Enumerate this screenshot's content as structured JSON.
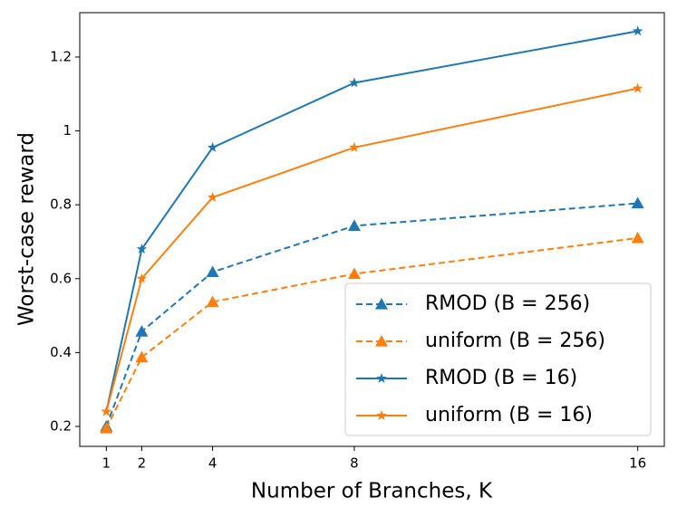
{
  "chart_data": {
    "type": "line",
    "x_label": "Number of Branches, K",
    "y_label": "Worst-case reward",
    "xlim": [
      0.25,
      16.75
    ],
    "ylim": [
      0.146,
      1.32
    ],
    "xticks": [
      1,
      2,
      4,
      8,
      16
    ],
    "yticks": [
      0.2,
      0.4,
      0.6,
      0.8,
      1.0,
      1.2
    ],
    "legend_position": "lower right",
    "x": [
      1,
      2,
      4,
      8,
      16
    ],
    "series": [
      {
        "name": "RMOD (B = 256)",
        "color": "#1f77b4",
        "linestyle": "dashed",
        "marker": "triangle",
        "values": [
          0.2,
          0.457,
          0.618,
          0.743,
          0.804
        ]
      },
      {
        "name": "uniform (B = 256)",
        "color": "#ff7f0e",
        "linestyle": "dashed",
        "marker": "triangle",
        "values": [
          0.195,
          0.387,
          0.537,
          0.613,
          0.71
        ]
      },
      {
        "name": "RMOD (B = 16)",
        "color": "#1f77b4",
        "linestyle": "solid",
        "marker": "star",
        "values": [
          0.24,
          0.68,
          0.955,
          1.13,
          1.27
        ]
      },
      {
        "name": "uniform (B = 16)",
        "color": "#ff7f0e",
        "linestyle": "solid",
        "marker": "star",
        "values": [
          0.24,
          0.6,
          0.82,
          0.955,
          1.115
        ]
      }
    ]
  }
}
